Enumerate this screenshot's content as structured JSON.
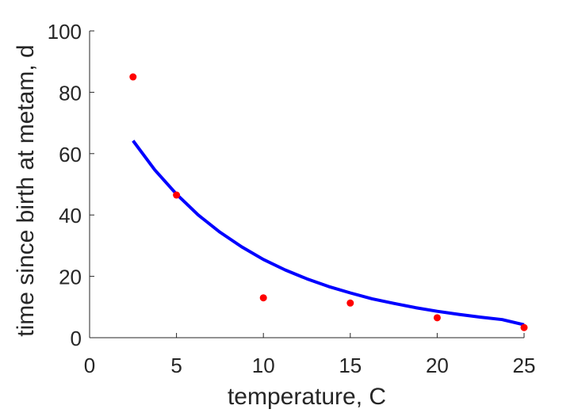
{
  "chart_data": {
    "type": "scatter",
    "xlabel": "temperature, C",
    "ylabel": "time since birth at metam, d",
    "xlim": [
      0,
      25
    ],
    "ylim": [
      0,
      100
    ],
    "xticks": [
      "0",
      "5",
      "10",
      "15",
      "20",
      "25"
    ],
    "yticks": [
      "0",
      "20",
      "40",
      "60",
      "80",
      "100"
    ],
    "grid": false,
    "colors": {
      "points": "#ff0000",
      "curve": "#0000ff",
      "axis": "#262626"
    },
    "series": [
      {
        "kind": "points",
        "x": [
          2.5,
          5,
          10,
          15,
          20,
          25
        ],
        "y": [
          85,
          46.5,
          13,
          11.3,
          6.5,
          3.3
        ]
      },
      {
        "kind": "line",
        "x": [
          2.5,
          3.75,
          5,
          6.25,
          7.5,
          8.75,
          10,
          11.25,
          12.5,
          13.75,
          15,
          16.25,
          17.5,
          18.75,
          20,
          21.25,
          22.5,
          23.75,
          25
        ],
        "y": [
          64.2,
          54.7,
          46.8,
          40.0,
          34.4,
          29.6,
          25.5,
          22.1,
          19.2,
          16.7,
          14.6,
          12.7,
          11.2,
          9.8,
          8.6,
          7.6,
          6.7,
          5.9,
          4.2
        ]
      }
    ]
  }
}
